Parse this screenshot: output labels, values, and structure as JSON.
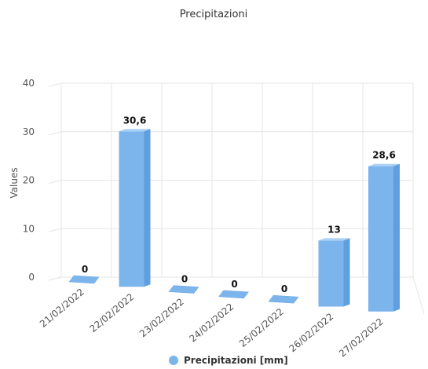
{
  "chart_data": {
    "type": "bar",
    "title": "Precipitazioni",
    "ylabel": "Values",
    "xlabel": "",
    "ylim": [
      0,
      40
    ],
    "yticks": [
      0,
      10,
      20,
      30,
      40
    ],
    "categories": [
      "21/02/2022",
      "22/02/2022",
      "23/02/2022",
      "24/02/2022",
      "25/02/2022",
      "26/02/2022",
      "27/02/2022"
    ],
    "series": [
      {
        "name": "Precipitazioni [mm]",
        "values": [
          0,
          30.6,
          0,
          0,
          0,
          13,
          28.6
        ],
        "labels": [
          "0",
          "30,6",
          "0",
          "0",
          "0",
          "13",
          "28,6"
        ],
        "color": "#7cb5ec"
      }
    ],
    "legend": "bottom-center",
    "grid": true,
    "style": "3d"
  }
}
